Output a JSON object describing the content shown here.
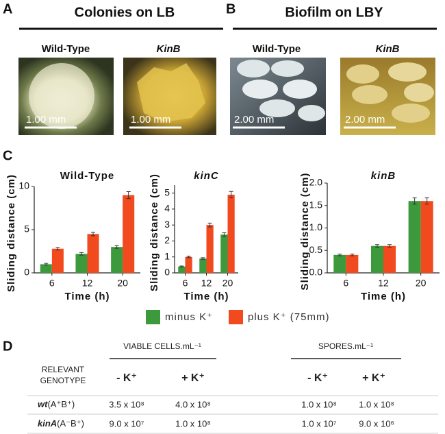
{
  "panel_labels": [
    "A",
    "B",
    "C",
    "D"
  ],
  "panel_a": {
    "title": "Colonies on LB",
    "images": [
      {
        "label": "Wild-Type",
        "scale": "1.00 mm"
      },
      {
        "label": "KinB",
        "scale": "1.00 mm"
      }
    ]
  },
  "panel_b": {
    "title": "Biofilm on LBY",
    "images": [
      {
        "label": "Wild-Type",
        "scale": "2.00 mm"
      },
      {
        "label": "KinB",
        "scale": "2.00 mm"
      }
    ]
  },
  "chart_data": [
    {
      "type": "bar",
      "title": "Wild-Type",
      "xlabel": "Time (h)",
      "ylabel": "Sliding distance (cm)",
      "categories": [
        "6",
        "12",
        "20"
      ],
      "ylim": [
        0,
        10
      ],
      "yticks": [
        0,
        5,
        10
      ],
      "series": [
        {
          "name": "minus K⁺",
          "color": "#3c9a3c",
          "values": [
            1.0,
            2.2,
            3.0
          ],
          "errors": [
            0.1,
            0.15,
            0.15
          ]
        },
        {
          "name": "plus K⁺ (75mm)",
          "color": "#f24a1f",
          "values": [
            2.8,
            4.5,
            9.0
          ],
          "errors": [
            0.15,
            0.2,
            0.4
          ]
        }
      ]
    },
    {
      "type": "bar",
      "title": "kinC",
      "xlabel": "Time (h)",
      "ylabel": "Sliding distance (cm)",
      "categories": [
        "6",
        "12",
        "20"
      ],
      "ylim": [
        0,
        5.5
      ],
      "yticks": [
        0,
        1,
        2,
        3,
        4,
        5
      ],
      "series": [
        {
          "name": "minus K⁺",
          "color": "#3c9a3c",
          "values": [
            0.4,
            0.9,
            2.4
          ],
          "errors": [
            0.03,
            0.05,
            0.12
          ]
        },
        {
          "name": "plus K⁺ (75mm)",
          "color": "#f24a1f",
          "values": [
            1.0,
            3.0,
            4.9
          ],
          "errors": [
            0.05,
            0.12,
            0.2
          ]
        }
      ]
    },
    {
      "type": "bar",
      "title": "kinB",
      "xlabel": "Time (h)",
      "ylabel": "Sliding distance (cm)",
      "categories": [
        "6",
        "12",
        "20"
      ],
      "ylim": [
        0,
        2
      ],
      "yticks": [
        {
          "value": 0,
          "label": "0.0"
        },
        {
          "value": 0.5,
          "label": "0.5"
        },
        {
          "value": 1,
          "label": "1.0"
        },
        {
          "value": 1.5,
          "label": "1.5"
        },
        {
          "value": 2,
          "label": "2.0"
        }
      ],
      "series": [
        {
          "name": "minus K⁺",
          "color": "#3c9a3c",
          "values": [
            0.4,
            0.6,
            1.6
          ],
          "errors": [
            0.02,
            0.03,
            0.07
          ]
        },
        {
          "name": "plus K⁺ (75mm)",
          "color": "#f24a1f",
          "values": [
            0.4,
            0.6,
            1.6
          ],
          "errors": [
            0.02,
            0.03,
            0.07
          ]
        }
      ]
    }
  ],
  "table": {
    "groups": [
      "VIABLE CELLS.mL⁻¹",
      "SPORES.mL⁻¹"
    ],
    "genotype_header": [
      "RELEVANT",
      "GENOTYPE"
    ],
    "columns": [
      "- K⁺",
      "+ K⁺",
      "- K⁺",
      "+ K⁺"
    ],
    "rows": [
      {
        "gene": "wt",
        "alleles": "(A⁺B⁺)",
        "cells": [
          "3.5 x 10⁸",
          "4.0 x 10⁸",
          "1.0 x 10⁸",
          "1.0 x 10⁸"
        ]
      },
      {
        "gene": "kinA",
        "alleles": "(A⁻B⁺)",
        "cells": [
          "9.0 x 10⁷",
          "1.0 x 10⁸",
          "1.0 x 10⁷",
          "9.0 x 10⁶"
        ]
      }
    ]
  }
}
